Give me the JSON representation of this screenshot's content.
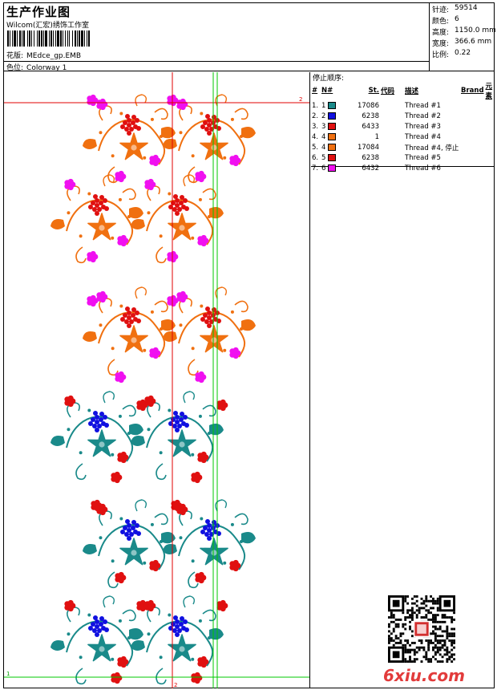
{
  "header": {
    "title": "生产作业图",
    "studio": "Wilcom(汇宏)绣饰工作室",
    "design_label": "花版:",
    "design_file": "MEdce_gp.EMB",
    "colorway_label": "色位:",
    "colorway": "Colorway 1"
  },
  "specs": [
    {
      "label": "针迹:",
      "value": "59514"
    },
    {
      "label": "颜色:",
      "value": "6"
    },
    {
      "label": "高度:",
      "value": "1150.0 mm"
    },
    {
      "label": "宽度:",
      "value": "366.6 mm"
    },
    {
      "label": "比例:",
      "value": "0.22"
    }
  ],
  "threads": {
    "stop_title": "停止顺序:",
    "columns": [
      "#",
      "N#",
      "St.",
      "代码",
      "描述",
      "Brand",
      "元素"
    ],
    "rows": [
      {
        "num": "1.",
        "n": "1",
        "code": "17086",
        "desc": "Thread #1",
        "color": "#1a8a8a"
      },
      {
        "num": "2.",
        "n": "2",
        "code": "6238",
        "desc": "Thread #2",
        "color": "#1010e0"
      },
      {
        "num": "3.",
        "n": "3",
        "code": "6433",
        "desc": "Thread #3",
        "color": "#e01010"
      },
      {
        "num": "4.",
        "n": "4",
        "code": "1",
        "desc": "Thread #4",
        "color": "#f07010"
      },
      {
        "num": "5.",
        "n": "4",
        "code": "17084",
        "desc": "Thread  #4, 停止",
        "color": "#f07010"
      },
      {
        "num": "6.",
        "n": "5",
        "code": "6238",
        "desc": "Thread #5",
        "color": "#e01010"
      },
      {
        "num": "7.",
        "n": "6",
        "code": "6432",
        "desc": "Thread #6",
        "color": "#f010f0"
      }
    ]
  },
  "guides": {
    "top_label": "2",
    "bottom_label": "1",
    "center_label": "2"
  },
  "watermark": "6xiu.com"
}
